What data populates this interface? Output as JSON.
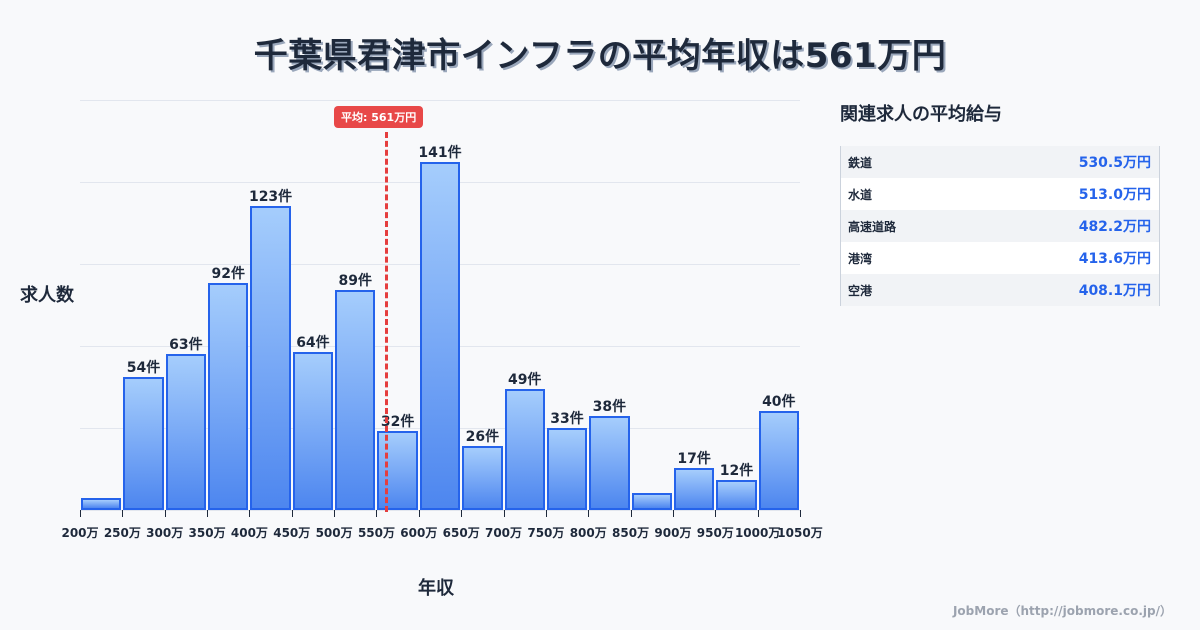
{
  "title": "千葉県君津市インフラの平均年収は561万円",
  "chart_data": {
    "type": "bar",
    "title": "千葉県君津市インフラの平均年収は561万円",
    "xlabel": "年収",
    "ylabel": "求人数",
    "categories": [
      "200万",
      "250万",
      "300万",
      "350万",
      "400万",
      "450万",
      "500万",
      "550万",
      "600万",
      "650万",
      "700万",
      "750万",
      "800万",
      "850万",
      "900万",
      "950万",
      "1000万"
    ],
    "bin_edges": [
      "200万",
      "250万",
      "300万",
      "350万",
      "400万",
      "450万",
      "500万",
      "550万",
      "600万",
      "650万",
      "700万",
      "750万",
      "800万",
      "850万",
      "900万",
      "950万",
      "1000万",
      "1050万"
    ],
    "values": [
      5,
      54,
      63,
      92,
      123,
      64,
      89,
      32,
      141,
      26,
      49,
      33,
      38,
      7,
      17,
      12,
      40
    ],
    "labels": [
      "",
      "54件",
      "63件",
      "92件",
      "123件",
      "64件",
      "89件",
      "32件",
      "141件",
      "26件",
      "49件",
      "33件",
      "38件",
      "",
      "17件",
      "12件",
      "40件"
    ],
    "ylim": [
      0,
      166
    ],
    "grid": true,
    "annotation": {
      "label": "平均: 561万円",
      "x": 561,
      "color": "#e53e3e"
    },
    "bar_color": "#2563eb"
  },
  "axis": {
    "x_title": "年収",
    "y_title": "求人数"
  },
  "average_badge": "平均: 561万円",
  "related": {
    "title": "関連求人の平均給与",
    "rows": [
      {
        "name": "鉄道",
        "value": "530.5万円"
      },
      {
        "name": "水道",
        "value": "513.0万円"
      },
      {
        "name": "高速道路",
        "value": "482.2万円"
      },
      {
        "name": "港湾",
        "value": "413.6万円"
      },
      {
        "name": "空港",
        "value": "408.1万円"
      }
    ]
  },
  "footer": "JobMore（http://jobmore.co.jp/）"
}
